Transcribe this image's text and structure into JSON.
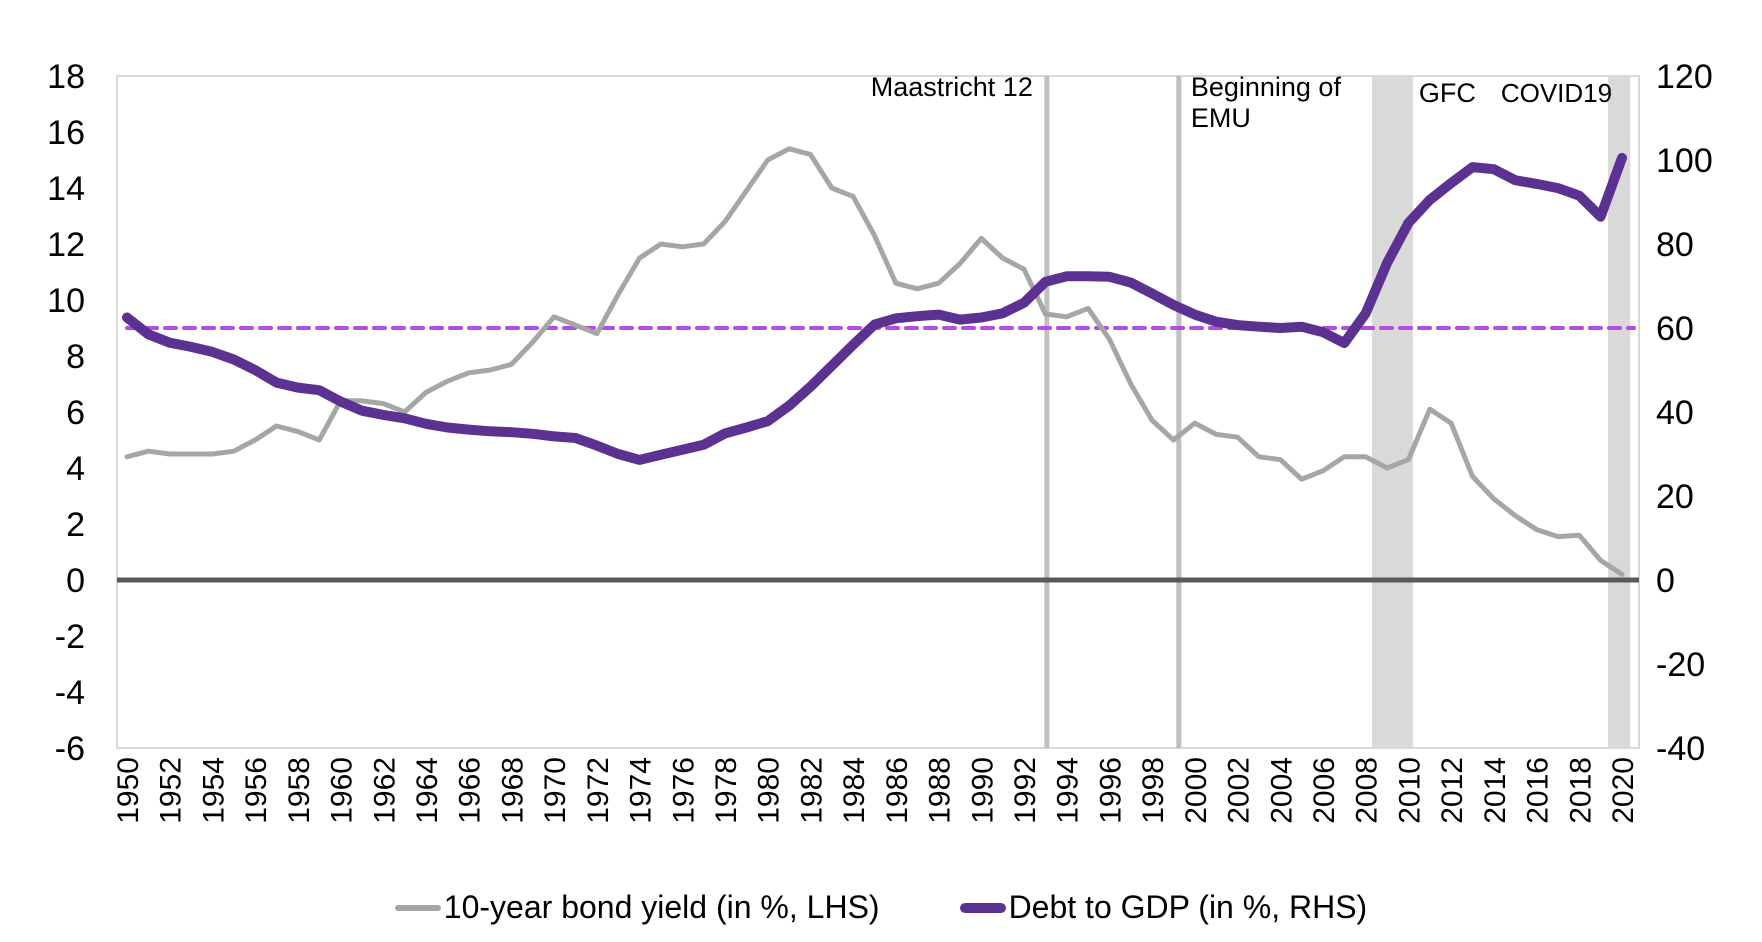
{
  "chart_data": {
    "type": "line",
    "title": "",
    "xlabel": "",
    "ylabel_left": "10-year bond yield (in %)",
    "ylabel_right": "Debt to GDP (in %)",
    "grid": false,
    "legend_position": "bottom",
    "x": [
      1950,
      1951,
      1952,
      1953,
      1954,
      1955,
      1956,
      1957,
      1958,
      1959,
      1960,
      1961,
      1962,
      1963,
      1964,
      1965,
      1966,
      1967,
      1968,
      1969,
      1970,
      1971,
      1972,
      1973,
      1974,
      1975,
      1976,
      1977,
      1978,
      1979,
      1980,
      1981,
      1982,
      1983,
      1984,
      1985,
      1986,
      1987,
      1988,
      1989,
      1990,
      1991,
      1992,
      1993,
      1994,
      1995,
      1996,
      1997,
      1998,
      1999,
      2000,
      2001,
      2002,
      2003,
      2004,
      2005,
      2006,
      2007,
      2008,
      2009,
      2010,
      2011,
      2012,
      2013,
      2014,
      2015,
      2016,
      2017,
      2018,
      2019,
      2020
    ],
    "series": [
      {
        "name": "10-year bond yield (in %, LHS)",
        "axis": "left",
        "color": "#A6A6A6",
        "width": 5,
        "values": [
          4.4,
          4.6,
          4.5,
          4.5,
          4.5,
          4.6,
          5.0,
          5.5,
          5.3,
          5.0,
          6.4,
          6.4,
          6.3,
          6.0,
          6.7,
          7.1,
          7.4,
          7.5,
          7.7,
          8.5,
          9.4,
          9.1,
          8.8,
          10.2,
          11.5,
          12.0,
          11.9,
          12.0,
          12.8,
          13.9,
          15.0,
          15.4,
          15.2,
          14.0,
          13.7,
          12.3,
          10.6,
          10.4,
          10.6,
          11.3,
          12.2,
          11.5,
          11.1,
          9.5,
          9.4,
          9.7,
          8.6,
          7.0,
          5.7,
          5.0,
          5.6,
          5.2,
          5.1,
          4.4,
          4.3,
          3.6,
          3.9,
          4.4,
          4.4,
          4.0,
          4.3,
          6.1,
          5.6,
          3.7,
          2.9,
          2.3,
          1.8,
          1.55,
          1.6,
          0.7,
          0.2
        ]
      },
      {
        "name": "Debt to GDP (in %, RHS)",
        "axis": "right",
        "color": "#5B3192",
        "width": 10,
        "values": [
          62.5,
          58.5,
          56.5,
          55.5,
          54.3,
          52.5,
          50.0,
          47.0,
          45.8,
          45.2,
          42.5,
          40.3,
          39.3,
          38.5,
          37.2,
          36.3,
          35.8,
          35.4,
          35.2,
          34.8,
          34.2,
          33.8,
          32.0,
          30.0,
          28.6,
          29.8,
          31.0,
          32.2,
          34.9,
          36.3,
          37.8,
          41.5,
          46.0,
          51.0,
          56.0,
          60.8,
          62.3,
          62.8,
          63.2,
          62.0,
          62.5,
          63.5,
          66.0,
          71.0,
          72.3,
          72.3,
          72.2,
          70.8,
          68.2,
          65.5,
          63.2,
          61.5,
          60.7,
          60.3,
          60.0,
          60.3,
          59.0,
          56.4,
          63.5,
          75.5,
          85.0,
          90.5,
          94.5,
          98.3,
          97.8,
          95.2,
          94.3,
          93.3,
          91.5,
          86.5,
          100.5
        ]
      }
    ],
    "left_axis": {
      "min": -6,
      "max": 18,
      "ticks": [
        18,
        16,
        14,
        12,
        10,
        8,
        6,
        4,
        2,
        0,
        -2,
        -4,
        -6
      ]
    },
    "right_axis": {
      "min": -40,
      "max": 120,
      "ticks": [
        120,
        100,
        80,
        60,
        40,
        20,
        0,
        -20,
        -40
      ]
    },
    "x_tick_step": 2,
    "reference_line": {
      "axis": "right",
      "value": 60,
      "color": "#B24DE2",
      "style": "dashed"
    },
    "event_lines": [
      {
        "label_lines": [
          "Maastricht 12"
        ],
        "year": 1993.07,
        "side": "left",
        "color": "#BFBFBF"
      },
      {
        "label_lines": [
          "Beginning of",
          "EMU"
        ],
        "year": 1999.25,
        "side": "right",
        "color": "#BFBFBF"
      }
    ],
    "shaded_bands": [
      {
        "label": "GFC",
        "from": 2008.29,
        "to": 2010.21,
        "side": "right",
        "color": "#D9D9D9"
      },
      {
        "label": "COVID19",
        "from": 2019.35,
        "to": 2020.38,
        "side": "left",
        "color": "#D9D9D9"
      }
    ]
  },
  "colors": {
    "zero_line": "#595959",
    "plot_border": "#D9D9D9",
    "text": "#000000",
    "background": "#FFFFFF"
  }
}
